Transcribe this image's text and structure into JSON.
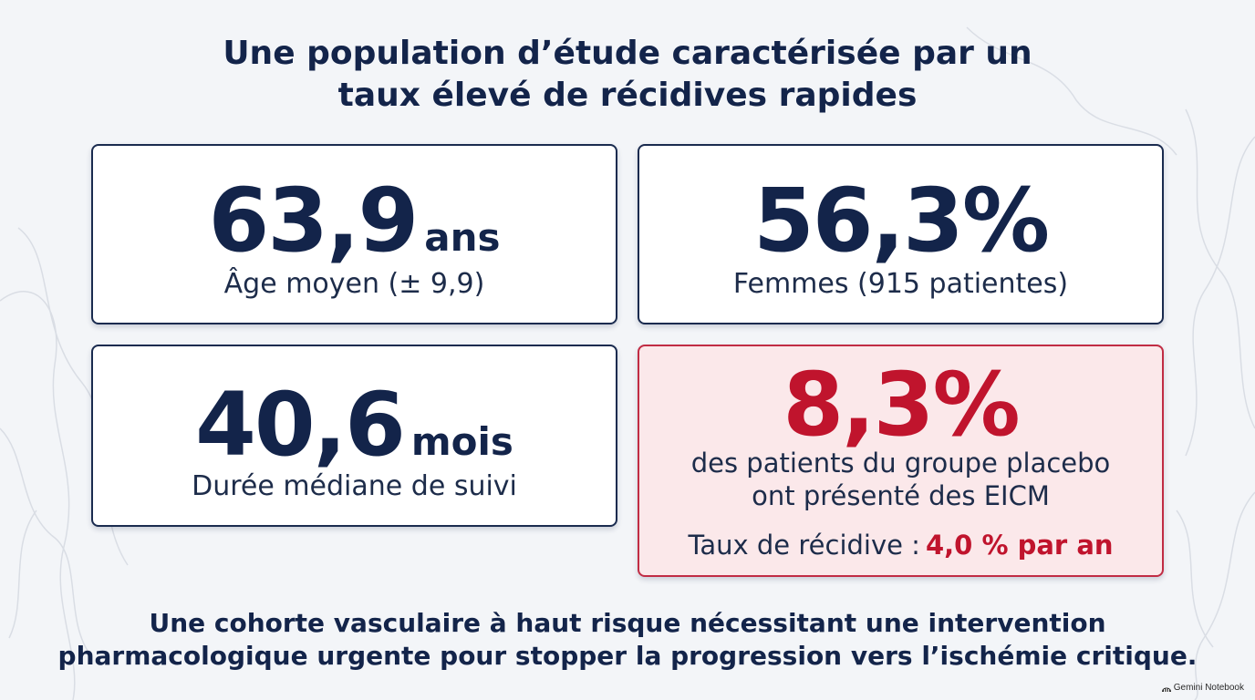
{
  "title": {
    "line1": "Une population d’étude caractérisée par un",
    "line2": "taux élevé de récidives rapides"
  },
  "cards": {
    "age": {
      "value": "63,9",
      "unit": "ans",
      "label": "Âge moyen (± 9,9)"
    },
    "women": {
      "value": "56,3%",
      "label": "Femmes (915 patientes)"
    },
    "follow_up": {
      "value": "40,6",
      "unit": "mois",
      "label": "Durée médiane de suivi"
    },
    "eicm": {
      "value": "8,3%",
      "desc_line1": "des patients du groupe placebo",
      "desc_line2": "ont présenté des EICM",
      "rate_label": "Taux de récidive :",
      "rate_value": "4,0 % par an"
    }
  },
  "conclusion": {
    "line1": "Une cohorte vasculaire à haut risque nécessitant une intervention",
    "line2": "pharmacologique urgente pour stopper la progression vers l’ischémie critique."
  },
  "watermark": {
    "text": "Gemini Notebook",
    "icon": "notebook-logo-icon"
  },
  "colors": {
    "navy": "#13244a",
    "accent_red": "#c0142d",
    "alert_bg": "#fbe8ea",
    "alert_border": "#c12c44",
    "background": "#f3f5f8"
  }
}
